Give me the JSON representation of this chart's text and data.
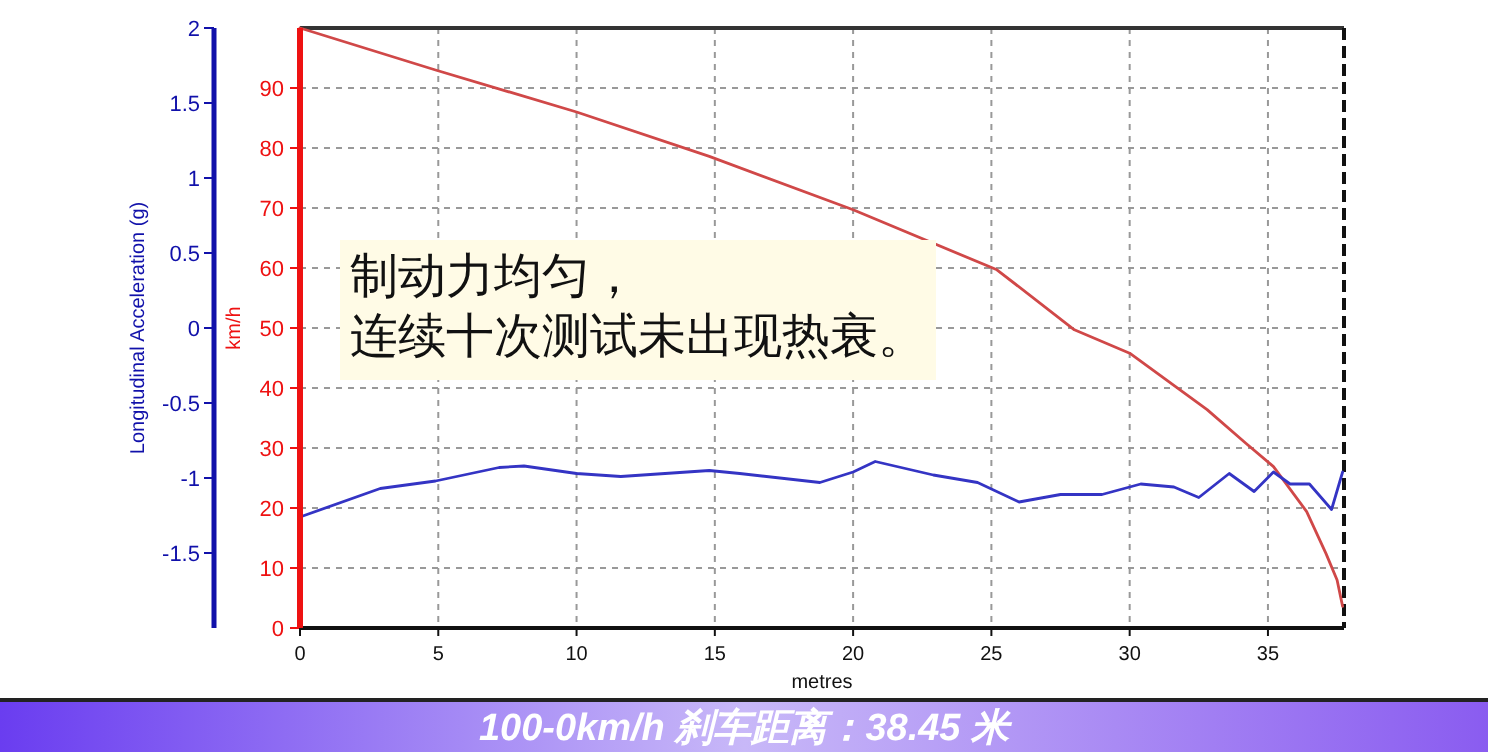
{
  "chart_data": {
    "type": "line",
    "xlabel": "metres",
    "ylabel": "km/h",
    "y2label": "Longitudinal Acceleration (g)",
    "xlim": [
      0,
      37.75
    ],
    "xticks": [
      0,
      5,
      10,
      15,
      20,
      25,
      30,
      35
    ],
    "ylim": [
      0,
      100
    ],
    "yticks": [
      0,
      10,
      20,
      30,
      40,
      50,
      60,
      70,
      80,
      90
    ],
    "y2lim": [
      -2,
      2
    ],
    "y2ticks": [
      -1.5,
      -1,
      -0.5,
      0,
      0.5,
      1,
      1.5,
      2
    ],
    "grid": true,
    "line_style": "solid",
    "marker": "none",
    "series": [
      {
        "color": "#d04848",
        "axis": "y",
        "x": [
          0,
          4.9,
          10,
          14.8,
          20,
          25.2,
          28,
          30,
          32.8,
          34.2,
          35.2,
          36.4,
          37.1,
          37.5,
          37.7
        ],
        "values": [
          100,
          93,
          86,
          78.6,
          69.7,
          59.7,
          49.7,
          45.8,
          36.4,
          30.8,
          26.9,
          19.4,
          12.4,
          8,
          3.6
        ]
      },
      {
        "color": "#3434c4",
        "axis": "y2",
        "x": [
          0,
          2.9,
          4.9,
          7.2,
          8.1,
          10,
          11.6,
          14.8,
          15.9,
          18.8,
          20,
          20.8,
          22.9,
          24.5,
          26,
          27.5,
          29,
          30.4,
          31.6,
          32.5,
          33.6,
          34.5,
          35.2,
          35.8,
          36.5,
          37.3,
          37.7
        ],
        "values": [
          -1.26,
          -1.07,
          -1.02,
          -0.93,
          -0.92,
          -0.97,
          -0.99,
          -0.95,
          -0.97,
          -1.03,
          -0.96,
          -0.89,
          -0.98,
          -1.03,
          -1.16,
          -1.11,
          -1.11,
          -1.04,
          -1.06,
          -1.13,
          -0.97,
          -1.09,
          -0.96,
          -1.04,
          -1.04,
          -1.21,
          -0.96
        ]
      }
    ],
    "annotations": [
      "制动力均匀，",
      "连续十次测试未出现热衰。",
      "100-0km/h 刹车距离：38.45 米"
    ]
  }
}
